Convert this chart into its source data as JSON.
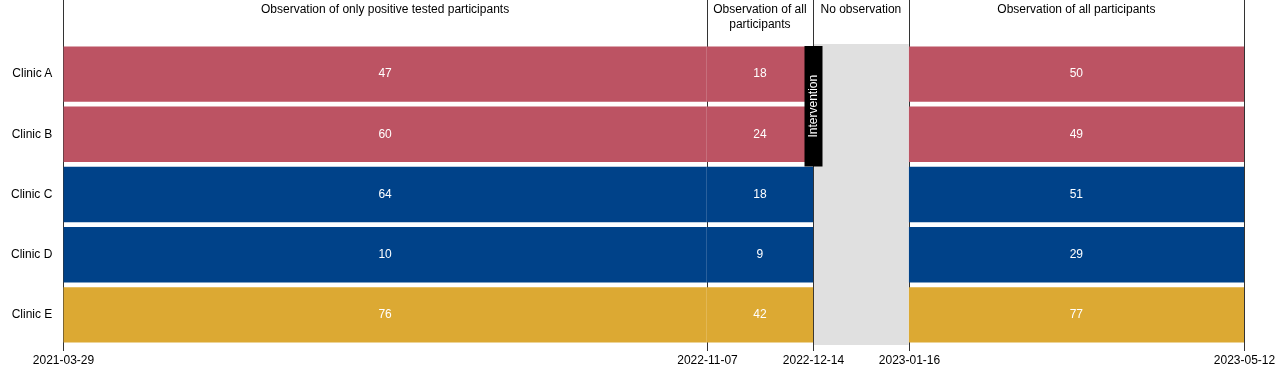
{
  "chart_data": {
    "type": "other",
    "categories": [
      "Clinic A",
      "Clinic B",
      "Clinic C",
      "Clinic D",
      "Clinic E"
    ],
    "series": [
      {
        "name": "Observation of only positive tested participants",
        "colors": [
          "#bc5363",
          "#bc5363",
          "#004289",
          "#004289",
          "#dca933"
        ],
        "values": [
          47,
          60,
          64,
          10,
          76
        ]
      },
      {
        "name": "Observation of all participants",
        "colors": [
          "#bc5363",
          "#bc5363",
          "#004289",
          "#004289",
          "#dca933"
        ],
        "values": [
          18,
          24,
          18,
          9,
          42
        ]
      },
      {
        "name": "No observation",
        "values": [
          null,
          null,
          null,
          null,
          null
        ]
      },
      {
        "name": "Observation of all participants",
        "colors": [
          "#bc5363",
          "#bc5363",
          "#004289",
          "#004289",
          "#dca933"
        ],
        "values": [
          50,
          49,
          51,
          29,
          77
        ]
      }
    ],
    "data_labels": true,
    "annotations": [
      "2021-03-29",
      "2022-11-07",
      "2022-12-14",
      "2023-01-16",
      "2023-05-12",
      "Intervention"
    ]
  }
}
